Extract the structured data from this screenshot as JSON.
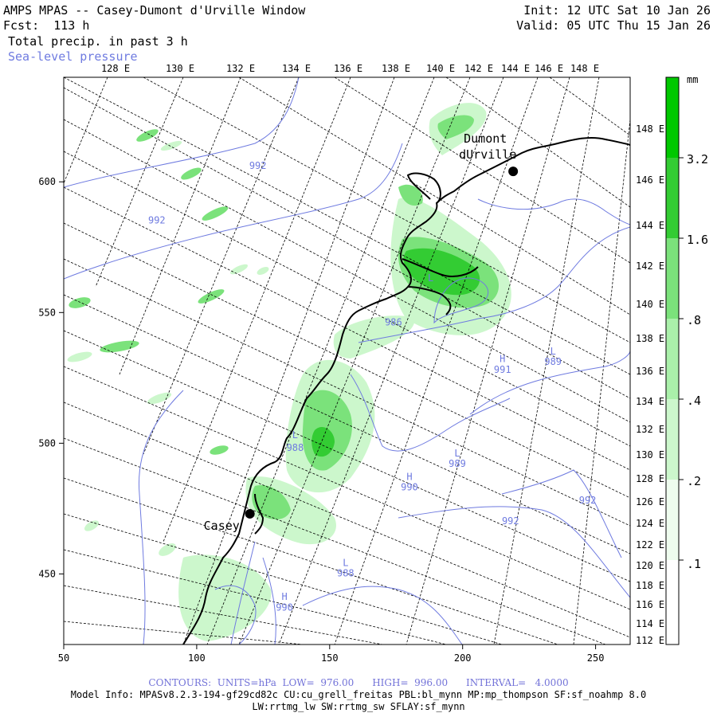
{
  "header": {
    "title": "AMPS MPAS -- Casey-Dumont d'Urville Window",
    "fcst_label": "Fcst:",
    "fcst_value": "113 h",
    "field": "Total precip. in past 3 h",
    "contour_field": "Sea-level pressure",
    "init": "Init: 12 UTC Sat 10 Jan 26",
    "valid": "Valid: 05 UTC Thu 15 Jan 26"
  },
  "colors": {
    "precip_light": "#ccf7cc",
    "precip_mid": "#7be27b",
    "precip_strong": "#33cc33",
    "precip_max": "#00c800",
    "contour": "#6f7be0",
    "coast": "#000000"
  },
  "map": {
    "top_lon_labels": [
      "128 E",
      "130 E",
      "132 E",
      "134 E",
      "136 E",
      "138 E",
      "140 E",
      "142 E",
      "144 E",
      "146 E",
      "148 E"
    ],
    "right_lon_labels": [
      "148 E",
      "146 E",
      "144 E",
      "142 E",
      "140 E",
      "138 E",
      "136 E",
      "134 E",
      "132 E",
      "130 E",
      "128 E",
      "126 E",
      "124 E",
      "122 E",
      "120 E",
      "118 E",
      "116 E",
      "114 E",
      "112 E"
    ],
    "x_axis": {
      "ticks": [
        50,
        100,
        150,
        200,
        250
      ],
      "range": [
        50,
        263
      ]
    },
    "y_axis": {
      "ticks": [
        450,
        500,
        550,
        600
      ],
      "range": [
        423,
        640
      ]
    },
    "stations": [
      {
        "name": "Casey",
        "lon_idx": 120,
        "lat_idx": 473
      },
      {
        "name": "Dumont\ndUrville",
        "lon_idx": 219,
        "lat_idx": 604
      }
    ],
    "pressure_labels": [
      {
        "text": "992",
        "x": 123,
        "y": 605
      },
      {
        "text": "992",
        "x": 85,
        "y": 584
      },
      {
        "text": "986",
        "x": 174,
        "y": 545
      },
      {
        "text": "L",
        "x": 188,
        "y": 562
      },
      {
        "text": "H",
        "x": 215,
        "y": 531
      },
      {
        "text": "991",
        "x": 215,
        "y": 527
      },
      {
        "text": "L",
        "x": 234,
        "y": 534
      },
      {
        "text": "989",
        "x": 234,
        "y": 530
      },
      {
        "text": "L",
        "x": 137,
        "y": 502
      },
      {
        "text": "988",
        "x": 137,
        "y": 497
      },
      {
        "text": "L",
        "x": 198,
        "y": 495
      },
      {
        "text": "989",
        "x": 198,
        "y": 491
      },
      {
        "text": "H",
        "x": 180,
        "y": 486
      },
      {
        "text": "990",
        "x": 180,
        "y": 482
      },
      {
        "text": "992",
        "x": 247,
        "y": 477
      },
      {
        "text": "992",
        "x": 218,
        "y": 469
      },
      {
        "text": "L",
        "x": 156,
        "y": 453
      },
      {
        "text": "988",
        "x": 156,
        "y": 449
      },
      {
        "text": "H",
        "x": 133,
        "y": 440
      },
      {
        "text": "990",
        "x": 133,
        "y": 436
      }
    ]
  },
  "colorbar": {
    "unit": "mm",
    "levels": [
      ".1",
      ".2",
      ".4",
      ".8",
      "1.6",
      "3.2"
    ]
  },
  "footer": {
    "contours": "CONTOURS:  UNITS=hPa  LOW=  976.00      HIGH=  996.00      INTERVAL=   4.0000",
    "model_info": "Model Info: MPASv8.2.3-194-gf29cd82c CU:cu_grell_freitas PBL:bl_mynn MP:mp_thompson SF:sf_noahmp 8.0",
    "model_info2": "LW:rrtmg_lw SW:rrtmg_sw SFLAY:sf_mynn"
  }
}
